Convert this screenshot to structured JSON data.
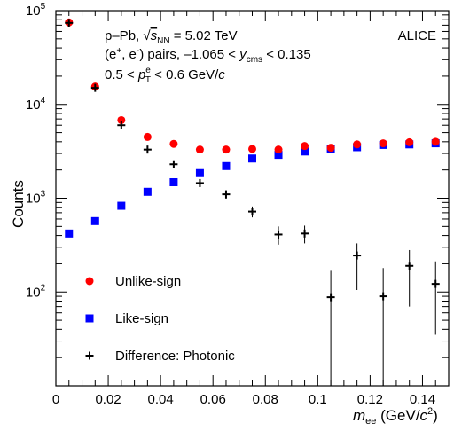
{
  "chart_data": {
    "type": "scatter",
    "title": "",
    "xlabel": {
      "var": "m",
      "sub": "ee",
      "units": " (GeV/",
      "c": "c",
      "sup": "2",
      "close": ")"
    },
    "ylabel": "Counts",
    "xlim": [
      0,
      0.15
    ],
    "ylim": [
      10,
      100000
    ],
    "yscale": "log",
    "x_ticks": [
      0,
      0.02,
      0.04,
      0.06,
      0.08,
      0.1,
      0.12,
      0.14
    ],
    "x_tick_labels": [
      "0",
      "0.02",
      "0.04",
      "0.06",
      "0.08",
      "0.1",
      "0.12",
      "0.14"
    ],
    "y_ticks": [
      {
        "base": "10",
        "exp": "2",
        "value": 100
      },
      {
        "base": "10",
        "exp": "3",
        "value": 1000
      },
      {
        "base": "10",
        "exp": "4",
        "value": 10000
      },
      {
        "base": "10",
        "exp": "5",
        "value": 100000
      }
    ],
    "experiment_label": "ALICE",
    "annotations": {
      "line1": {
        "pre": "p–Pb, ",
        "sqrt_s": "s",
        "sqrt_sub": "NN",
        "post": " = 5.02 TeV"
      },
      "line2": {
        "pre": "(e",
        "sup1": "+",
        "mid": ", e",
        "sup2": "-",
        "post": ") pairs, –1.065 < ",
        "var": "y",
        "sub": "cms",
        "tail": " < 0.135"
      },
      "line3": {
        "pre": "0.5 < ",
        "var": "p",
        "sup": "e",
        "sub": "T",
        "tail": " < 0.6 GeV/",
        "c": "c"
      }
    },
    "legend_position": "bottom-left",
    "series": [
      {
        "name": "Unlike-sign",
        "marker": "circle",
        "color": "#ff0000",
        "x": [
          0.005,
          0.015,
          0.025,
          0.035,
          0.045,
          0.055,
          0.065,
          0.075,
          0.085,
          0.095,
          0.105,
          0.115,
          0.125,
          0.135,
          0.145
        ],
        "y": [
          75000,
          15500,
          6800,
          4500,
          3800,
          3300,
          3300,
          3350,
          3300,
          3600,
          3450,
          3750,
          3850,
          3950,
          4000
        ]
      },
      {
        "name": "Like-sign",
        "marker": "square",
        "color": "#0000ff",
        "x": [
          0.005,
          0.015,
          0.025,
          0.035,
          0.045,
          0.055,
          0.065,
          0.075,
          0.085,
          0.095,
          0.105,
          0.115,
          0.125,
          0.135,
          0.145
        ],
        "y": [
          420,
          570,
          830,
          1170,
          1480,
          1850,
          2200,
          2650,
          2900,
          3150,
          3350,
          3500,
          3700,
          3750,
          3850
        ]
      },
      {
        "name": "Difference: Photonic",
        "marker": "cross",
        "color": "#000000",
        "x": [
          0.005,
          0.015,
          0.025,
          0.035,
          0.045,
          0.055,
          0.065,
          0.075,
          0.085,
          0.095,
          0.105,
          0.115,
          0.125,
          0.135,
          0.145
        ],
        "y": [
          74000,
          15000,
          6000,
          3300,
          2300,
          1450,
          1100,
          720,
          410,
          420,
          88,
          245,
          90,
          190,
          122
        ],
        "err_low": [
          1000,
          400,
          250,
          170,
          150,
          130,
          110,
          95,
          90,
          90,
          88,
          140,
          90,
          120,
          87
        ],
        "err_high": [
          1000,
          400,
          250,
          170,
          150,
          130,
          110,
          95,
          90,
          90,
          80,
          85,
          90,
          90,
          90
        ]
      }
    ]
  }
}
